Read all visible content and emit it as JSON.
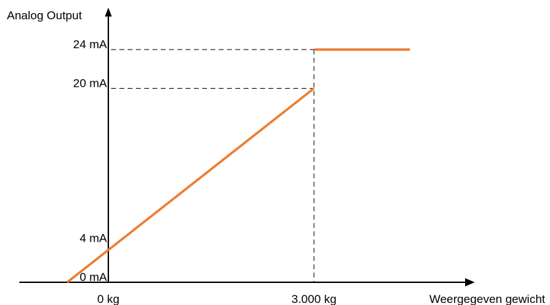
{
  "chart_data": {
    "type": "line",
    "title": "",
    "ylabel": "Analog Output",
    "xlabel": "Weergegeven gewicht",
    "xlim": [
      -600,
      4400
    ],
    "ylim": [
      0,
      24
    ],
    "y_ticks": [
      {
        "value": 0,
        "label": "0 mA"
      },
      {
        "value": 4,
        "label": "4 mA"
      },
      {
        "value": 20,
        "label": "20 mA"
      },
      {
        "value": 24,
        "label": "24 mA"
      }
    ],
    "x_ticks": [
      {
        "value": 0,
        "label": "0 kg"
      },
      {
        "value": 3000,
        "label": "3.000 kg"
      }
    ],
    "series": [
      {
        "color": "#ED7D31",
        "segments": [
          [
            {
              "x": -600,
              "y": 0
            },
            {
              "x": 3000,
              "y": 20
            }
          ],
          [
            {
              "x": 3000,
              "y": 24
            },
            {
              "x": 4400,
              "y": 24
            }
          ]
        ]
      }
    ],
    "guides": {
      "horizontal": [
        20,
        24
      ],
      "vertical": [
        3000
      ]
    },
    "grid": false,
    "legend": "none"
  }
}
